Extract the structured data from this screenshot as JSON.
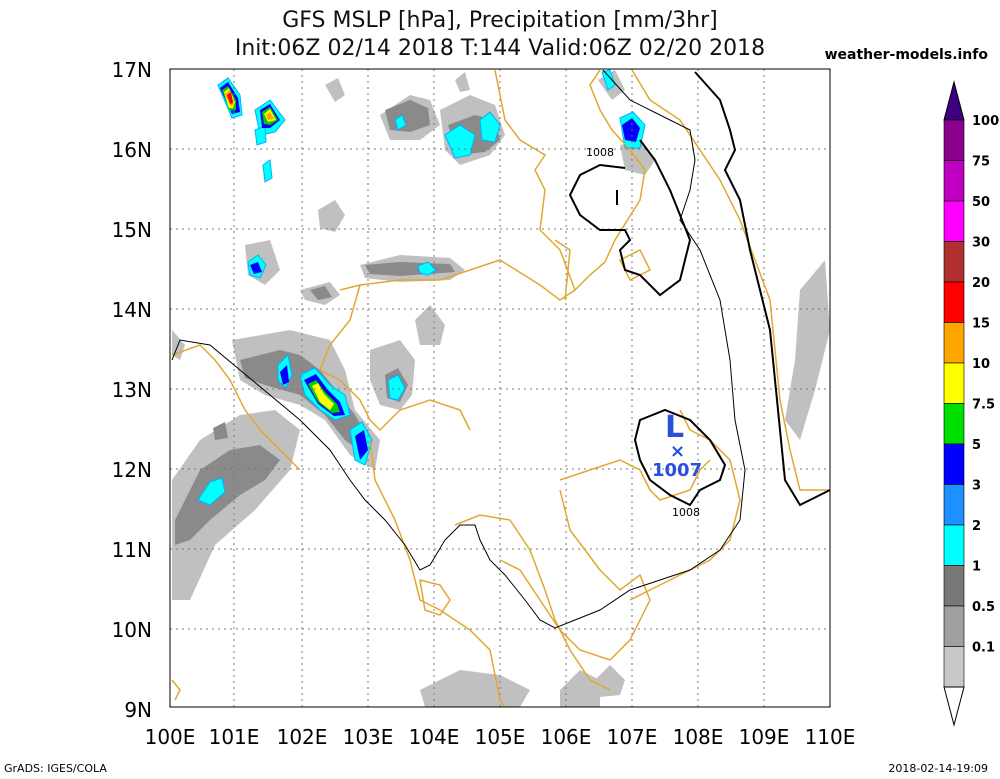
{
  "title_line1": "GFS MSLP [hPa], Precipitation [mm/3hr]",
  "title_line2": "Init:06Z 02/14 2018 T:144 Valid:06Z 02/20 2018",
  "source": "weather-models.info",
  "footer_left": "GrADS: IGES/COLA",
  "footer_right": "2018-02-14-19:09",
  "map": {
    "lat_labels": [
      "17N",
      "16N",
      "15N",
      "14N",
      "13N",
      "12N",
      "11N",
      "10N",
      "9N"
    ],
    "lon_labels": [
      "100E",
      "101E",
      "102E",
      "103E",
      "104E",
      "105E",
      "106E",
      "107E",
      "108E",
      "109E",
      "110E"
    ],
    "low_marker": "L",
    "low_value": "1007",
    "isobar_labels": [
      "1008",
      "1008"
    ]
  },
  "colorbar": {
    "levels": [
      "100",
      "75",
      "50",
      "30",
      "20",
      "15",
      "10",
      "7.5",
      "5",
      "3",
      "2",
      "1",
      "0.5",
      "0.1"
    ],
    "colors": [
      "#8b008b",
      "#c000c0",
      "#ff00ff",
      "#b03030",
      "#ff0000",
      "#ffa500",
      "#ffff00",
      "#00e000",
      "#0000ff",
      "#1e90ff",
      "#00ffff",
      "#787878",
      "#a0a0a0",
      "#c8c8c8"
    ],
    "top_color": "#3c0080"
  }
}
